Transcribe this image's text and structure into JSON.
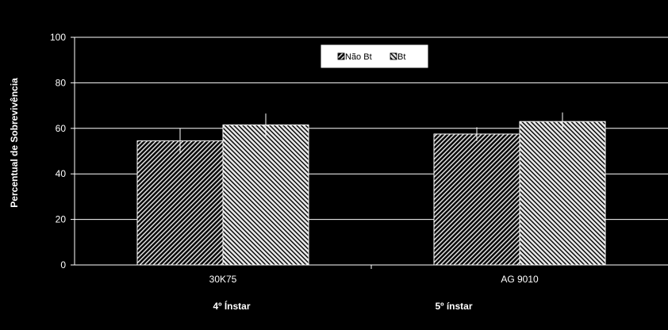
{
  "chart_data": {
    "type": "bar",
    "title": "",
    "xlabel": "",
    "ylabel": "Percentual de Sobrevivência",
    "ylim": [
      0,
      100
    ],
    "yticks": [
      0,
      20,
      40,
      60,
      80,
      100
    ],
    "grid": true,
    "legend_position": "top-center",
    "categories": [
      "30K75",
      "AG 9010"
    ],
    "group_annotations": [
      "4º Ínstar",
      "5º ínstar"
    ],
    "series": [
      {
        "name": "Não Bt",
        "values": [
          54.5,
          57.5
        ],
        "error": [
          5.5,
          3
        ],
        "pattern": "dark-hatch",
        "color": "#1a1a1a"
      },
      {
        "name": "Bt",
        "values": [
          61.5,
          63
        ],
        "error": [
          5,
          4
        ],
        "pattern": "light-hatch",
        "color": "#e0e0e0"
      }
    ]
  },
  "colors": {
    "background": "#000000",
    "axis": "#ffffff",
    "grid": "#ffffff",
    "legend_bg": "#ffffff"
  }
}
